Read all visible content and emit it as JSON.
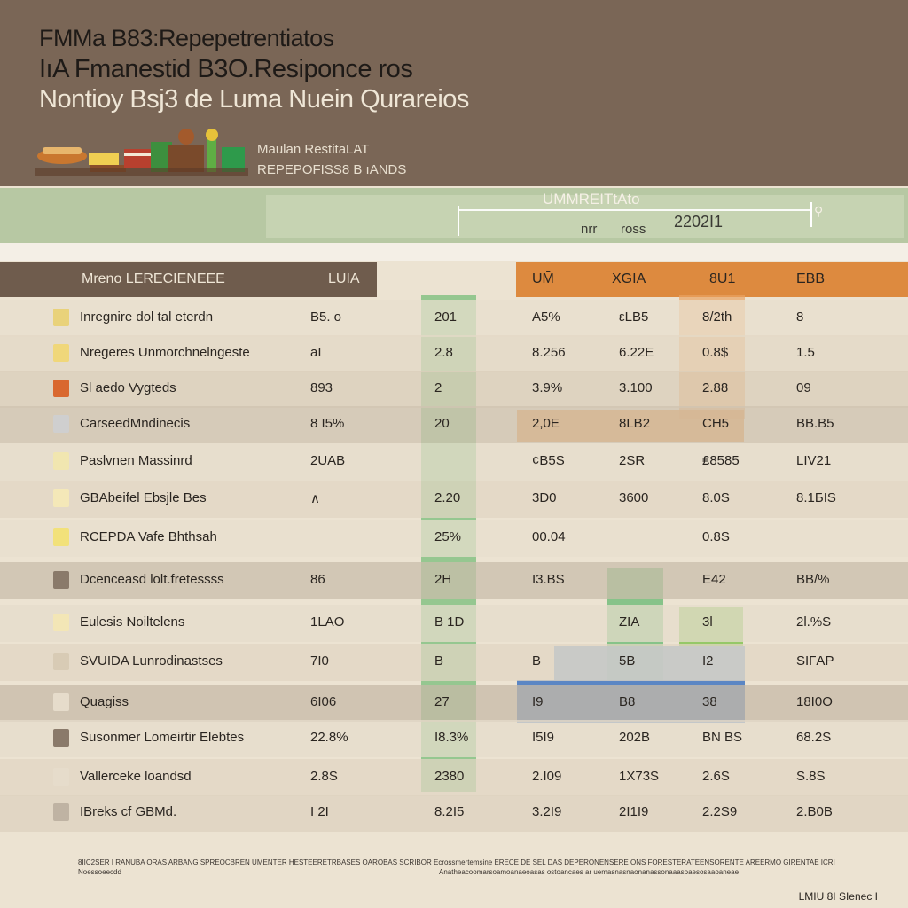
{
  "header": {
    "title1": "FMMa B83:Repepetrentiatos",
    "title2": "IıA Fmanestid B3O.Resiponce ros",
    "title3": "Nontioy Bsj3 de Luma Nuein Qurareios",
    "sub1": "Maulan RestitaLAT",
    "sub2": "REPEPOFISS8 B ıANDS"
  },
  "band": {
    "label": "UMMREITtAto",
    "left_text": "nrr",
    "mid_text": "ross",
    "year": "2202I1"
  },
  "table": {
    "columns": [
      "Mreno LERECIENEEE",
      "LUIA",
      "UM̄",
      "XGIA",
      "8U1",
      "EBB"
    ],
    "rows": [
      {
        "label": "Inregnire dol tal eterdn",
        "c1": "B5. o",
        "c2": "201",
        "c3": "A5%",
        "c4": "εLB5",
        "c5": "8/2th",
        "c6": "8"
      },
      {
        "label": "Nregeres Unmorchnelngeste",
        "c1": "aI",
        "c2": "2.8",
        "c3": "8.256",
        "c4": "6.22E",
        "c5": "0.8$",
        "c6": "1.5"
      },
      {
        "label": "Sl aedo Vygteds",
        "c1": "893",
        "c2": "2",
        "c3": "3.9%",
        "c4": "3.100",
        "c5": "2.88",
        "c6": "09"
      },
      {
        "label": "CarseedMndinecis",
        "c1": "8 I5% ",
        "c2": "20",
        "c3": "2,0E",
        "c4": "8LB2",
        "c5": "CH5",
        "c6": "BB.B5"
      },
      {
        "label": "Paslvnen Massinrd",
        "c1": "2UAB",
        "c2": "",
        "c3": "¢B5S",
        "c4": "2SR",
        "c5": "₤8585",
        "c6": "LIV21"
      },
      {
        "label": "GBAbeifel Ebsjle Bes",
        "c1": "∧",
        "c2": "2.20",
        "c3": "3D0",
        "c4": "3600",
        "c5": "8.0S",
        "c6": "8.1БIS"
      },
      {
        "label": "RCEPDA Vafe Bhthsah",
        "c1": "",
        "c2": "25%",
        "c3": "00.04",
        "c4": "",
        "c5": "0.8S",
        "c6": ""
      },
      {
        "label": "Dcenceasd lolt.fretessss",
        "c1": "86",
        "c2": "2H",
        "c3": "I3.BS",
        "c4": "",
        "c5": "E42",
        "c6": "BB/%"
      },
      {
        "label": "Eulesis Noiltelens",
        "c1": "1LAO",
        "c2": "B 1D",
        "c3": "",
        "c4": "ZIA",
        "c5": "3l",
        "c6": "2l.%S"
      },
      {
        "label": "SVUIDA Lunrodinastses",
        "c1": "7I0",
        "c2": "B",
        "c3": "B",
        "c4": "5B",
        "c5": "I2",
        "c6": "SIΓAP"
      },
      {
        "label": "Quagiss",
        "c1": "6I06",
        "c2": "27",
        "c3": "I9",
        "c4": "B8",
        "c5": "38",
        "c6": "18I0O"
      },
      {
        "label": "Susonmer Lomeirtir Elebtes",
        "c1": "22.8%",
        "c2": "I8.3%",
        "c3": "I5I9",
        "c4": "202B",
        "c5": "BN BS",
        "c6": "68.2S"
      },
      {
        "label": "Vallerceke loandsd",
        "c1": "2.8S",
        "c2": "2380",
        "c3": "2.I09",
        "c4": "1X73S",
        "c5": "2.6S",
        "c6": "S.8S"
      },
      {
        "label": "IBreks cf GBMd.",
        "c1": "I 2I",
        "c2": "8.2I5",
        "c3": "3.2I9",
        "c4": "2I1I9",
        "c5": "2.2S9",
        "c6": "2.B0B"
      }
    ]
  },
  "footer": {
    "line1": "8IIC2SER I RANUBA ORAS ARBANG SPREOCBREN UMENTER HESTEERETRBASES OAROBAS SCRIBOR Ecrossmertemsine ERECE DE SEL DAS DEPERONENSERE ONS FORESTERATEENSORENTE AREERMO GIRENTAE ICRI",
    "line1b": "Noessoeecdd",
    "line2": "Anatheacoomarsoamoanaeoasas ostoancaes ar uemasnasnaonanassonaaasoaesosaaoaneae",
    "credit": "LMIU 8I SIenec I"
  },
  "colors": {
    "header_bg": "#7a6656",
    "band_bg": "#b7c8a3",
    "orange": "#dd8a3f",
    "green": "#7fbf80",
    "blue": "#5b86c4"
  }
}
